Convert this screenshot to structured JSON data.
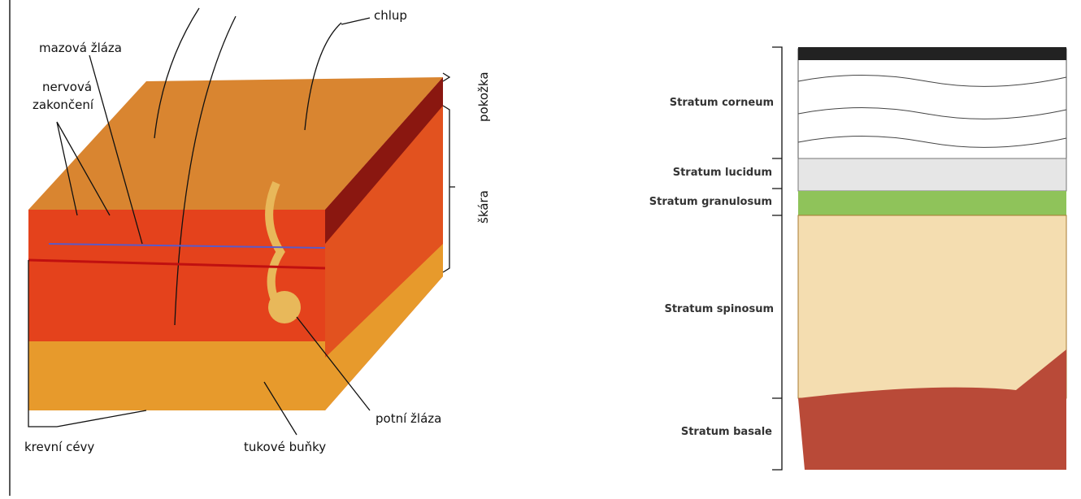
{
  "skin_block": {
    "labels": {
      "hair": "chlup",
      "sebaceous_gland": "mazová žláza",
      "nerve_endings": [
        "nervová",
        "zakončení"
      ],
      "epidermis": "pokožka",
      "dermis": "škára",
      "blood_vessels": "krevní cévy",
      "fat_cells": "tukové buňky",
      "sweat_gland": "potní žláza"
    }
  },
  "epidermis_layers": {
    "layers": [
      "Stratum corneum",
      "Stratum lucidum",
      "Stratum granulosum",
      "Stratum spinosum",
      "Stratum basale"
    ]
  }
}
